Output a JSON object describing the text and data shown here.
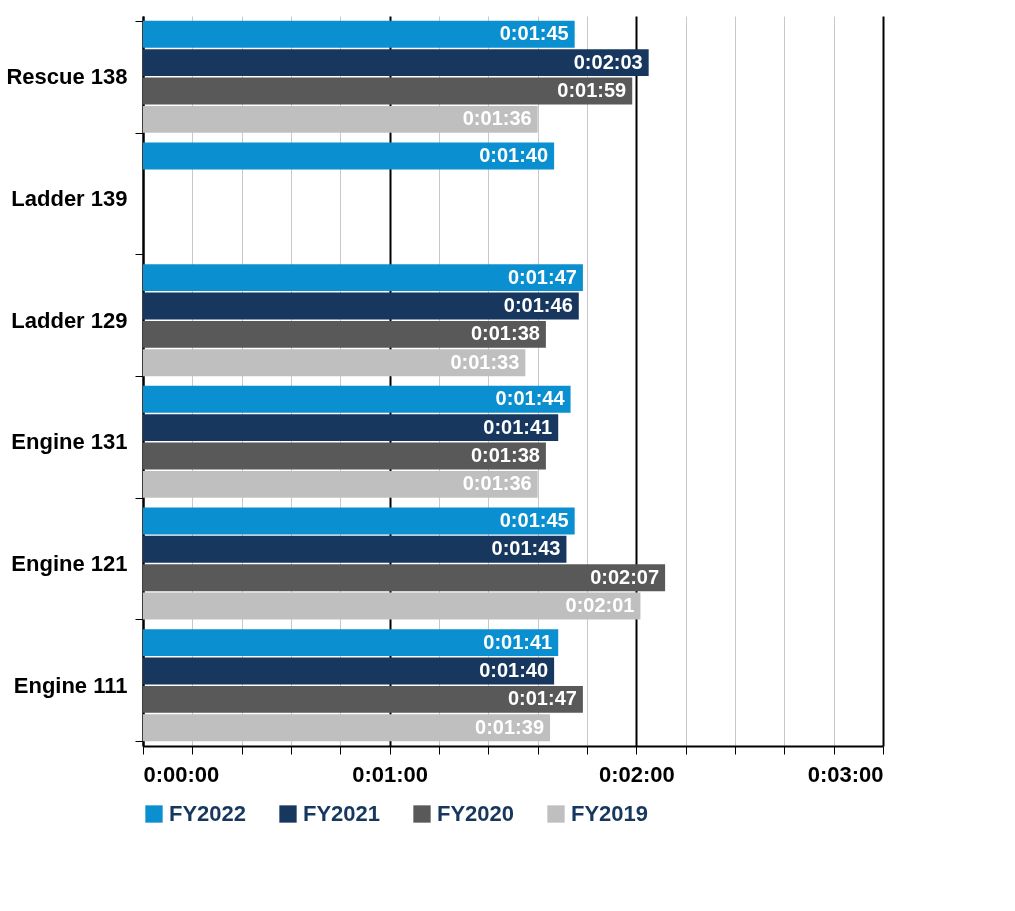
{
  "chart_data": {
    "type": "bar",
    "orientation": "horizontal",
    "categories": [
      "Rescue 138",
      "Ladder 139",
      "Ladder 129",
      "Engine 131",
      "Engine 121",
      "Engine 111"
    ],
    "series": [
      {
        "name": "FY2022",
        "color": "#0a8fd0",
        "values": [
          105,
          100,
          107,
          104,
          105,
          101
        ],
        "value_labels": [
          "0:01:45",
          "0:01:40",
          "0:01:47",
          "0:01:44",
          "0:01:45",
          "0:01:41"
        ]
      },
      {
        "name": "FY2021",
        "color": "#17375e",
        "values": [
          123,
          null,
          106,
          101,
          103,
          100
        ],
        "value_labels": [
          "0:02:03",
          null,
          "0:01:46",
          "0:01:41",
          "0:01:43",
          "0:01:40"
        ]
      },
      {
        "name": "FY2020",
        "color": "#595959",
        "values": [
          119,
          null,
          98,
          98,
          127,
          107
        ],
        "value_labels": [
          "0:01:59",
          null,
          "0:01:38",
          "0:01:38",
          "0:02:07",
          "0:01:47"
        ]
      },
      {
        "name": "FY2019",
        "color": "#bfbfbf",
        "values": [
          96,
          null,
          93,
          96,
          121,
          99
        ],
        "value_labels": [
          "0:01:36",
          null,
          "0:01:33",
          "0:01:36",
          "0:02:01",
          "0:01:39"
        ]
      }
    ],
    "xlim": [
      0,
      180
    ],
    "xticks": [
      {
        "value": 0,
        "label": "0:00:00"
      },
      {
        "value": 12,
        "label": null
      },
      {
        "value": 24,
        "label": null
      },
      {
        "value": 36,
        "label": null
      },
      {
        "value": 48,
        "label": null
      },
      {
        "value": 60,
        "label": "0:01:00"
      },
      {
        "value": 72,
        "label": null
      },
      {
        "value": 84,
        "label": null
      },
      {
        "value": 96,
        "label": null
      },
      {
        "value": 108,
        "label": null
      },
      {
        "value": 120,
        "label": "0:02:00"
      },
      {
        "value": 132,
        "label": null
      },
      {
        "value": 144,
        "label": null
      },
      {
        "value": 156,
        "label": null
      },
      {
        "value": 168,
        "label": null
      },
      {
        "value": 180,
        "label": "0:03:00"
      }
    ],
    "grid": "x",
    "legend": "bottom"
  }
}
